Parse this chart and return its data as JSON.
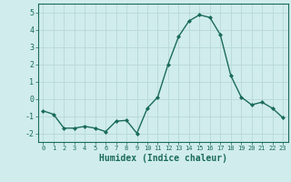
{
  "x": [
    0,
    1,
    2,
    3,
    4,
    5,
    6,
    7,
    8,
    9,
    10,
    11,
    12,
    13,
    14,
    15,
    16,
    17,
    18,
    19,
    20,
    21,
    22,
    23
  ],
  "y": [
    -0.7,
    -0.9,
    -1.7,
    -1.7,
    -1.6,
    -1.7,
    -1.9,
    -1.3,
    -1.25,
    -2.0,
    -0.55,
    0.1,
    2.0,
    3.6,
    4.5,
    4.85,
    4.7,
    3.7,
    1.35,
    0.1,
    -0.35,
    -0.2,
    -0.55,
    -1.1
  ],
  "line_color": "#1a6b5a",
  "marker": "D",
  "marker_size": 2.0,
  "bg_color": "#d0ecec",
  "grid_color": "#b8d8d8",
  "tick_color": "#1a6b5a",
  "xlabel": "Humidex (Indice chaleur)",
  "xlabel_fontsize": 7,
  "ylabel_ticks": [
    -2,
    -1,
    0,
    1,
    2,
    3,
    4,
    5
  ],
  "xlim": [
    -0.5,
    23.5
  ],
  "ylim": [
    -2.5,
    5.5
  ],
  "xticks": [
    0,
    1,
    2,
    3,
    4,
    5,
    6,
    7,
    8,
    9,
    10,
    11,
    12,
    13,
    14,
    15,
    16,
    17,
    18,
    19,
    20,
    21,
    22,
    23
  ]
}
